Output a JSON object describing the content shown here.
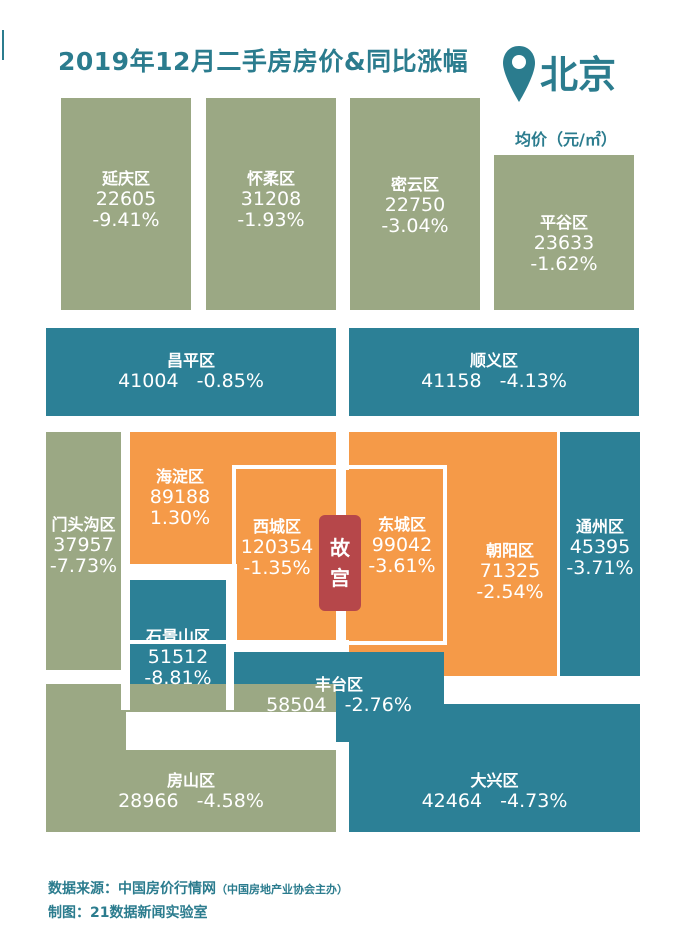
{
  "title": "2019年12月二手房房价&同比涨幅",
  "city": "北京",
  "unit_label": "均价（元/㎡）",
  "landmark": {
    "line1": "故",
    "line2": "宫"
  },
  "districts": {
    "yanqing": {
      "name": "延庆区",
      "price": "22605",
      "change": "-9.41%"
    },
    "huairou": {
      "name": "怀柔区",
      "price": "31208",
      "change": "-1.93%"
    },
    "miyun": {
      "name": "密云区",
      "price": "22750",
      "change": "-3.04%"
    },
    "pinggu": {
      "name": "平谷区",
      "price": "23633",
      "change": "-1.62%"
    },
    "changping": {
      "name": "昌平区",
      "price": "41004",
      "change": "-0.85%"
    },
    "shunyi": {
      "name": "顺义区",
      "price": "41158",
      "change": "-4.13%"
    },
    "mentougou": {
      "name": "门头沟区",
      "price": "37957",
      "change": "-7.73%"
    },
    "haidian": {
      "name": "海淀区",
      "price": "89188",
      "change": "1.30%"
    },
    "xicheng": {
      "name": "西城区",
      "price": "120354",
      "change": "-1.35%"
    },
    "dongcheng": {
      "name": "东城区",
      "price": "99042",
      "change": "-3.61%"
    },
    "chaoyang": {
      "name": "朝阳区",
      "price": "71325",
      "change": "-2.54%"
    },
    "tongzhou": {
      "name": "通州区",
      "price": "45395",
      "change": "-3.71%"
    },
    "shijingshan": {
      "name": "石景山区",
      "price": "51512",
      "change": "-8.81%"
    },
    "fengtai": {
      "name": "丰台区",
      "price": "58504",
      "change": "-2.76%"
    },
    "fangshan": {
      "name": "房山区",
      "price": "28966",
      "change": "-4.58%"
    },
    "daxing": {
      "name": "大兴区",
      "price": "42464",
      "change": "-4.73%"
    }
  },
  "footer": {
    "source_label": "数据来源：中国房价行情网",
    "source_note": "（中国房地产业协会主办）",
    "credit": "制图：21数据新闻实验室"
  },
  "colors": {
    "olive": "#9ba884",
    "teal": "#2c8096",
    "orange": "#f59a48",
    "landmark": "#b6474a",
    "accent": "#2b7c8e"
  }
}
